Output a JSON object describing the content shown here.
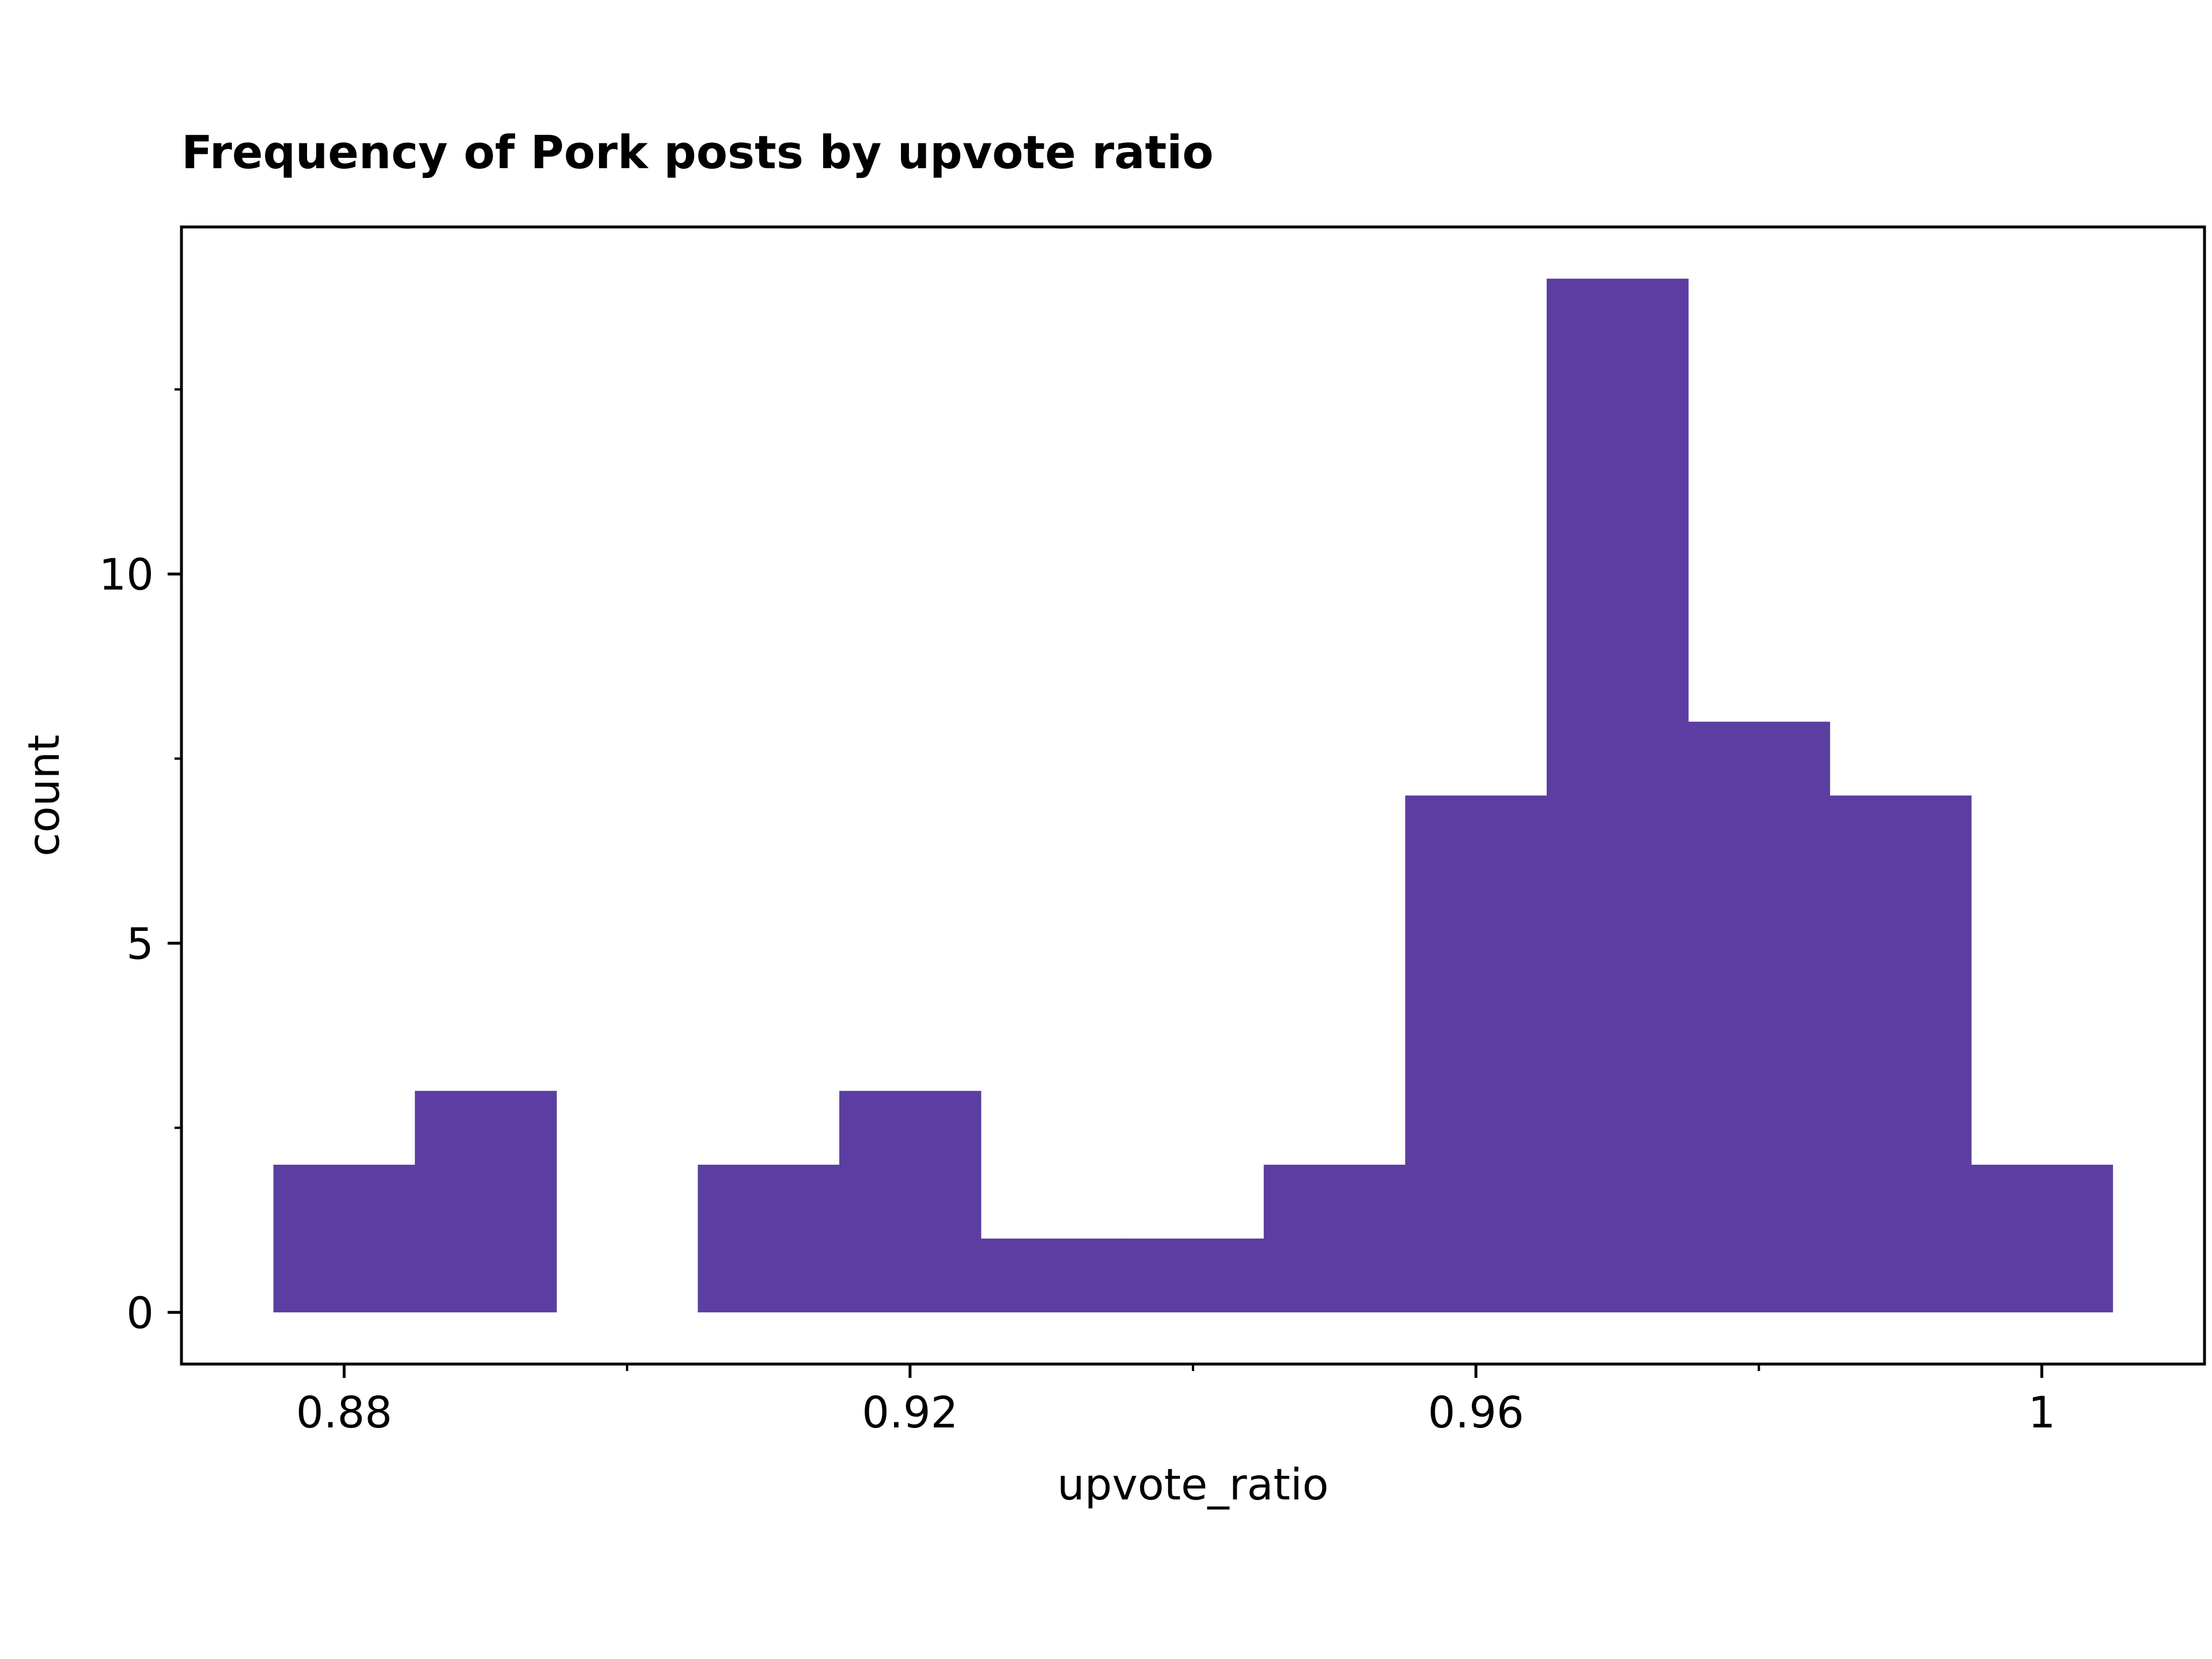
{
  "chart_data": {
    "type": "bar",
    "title": "Frequency of Pork posts by upvote ratio",
    "xlabel": "upvote_ratio",
    "ylabel": "count",
    "bin_width": 0.01,
    "bins": [
      {
        "start": 0.875,
        "end": 0.885,
        "count": 2
      },
      {
        "start": 0.885,
        "end": 0.895,
        "count": 3
      },
      {
        "start": 0.895,
        "end": 0.905,
        "count": 0
      },
      {
        "start": 0.905,
        "end": 0.915,
        "count": 2
      },
      {
        "start": 0.915,
        "end": 0.925,
        "count": 3
      },
      {
        "start": 0.925,
        "end": 0.935,
        "count": 1
      },
      {
        "start": 0.935,
        "end": 0.945,
        "count": 1
      },
      {
        "start": 0.945,
        "end": 0.955,
        "count": 2
      },
      {
        "start": 0.955,
        "end": 0.965,
        "count": 7
      },
      {
        "start": 0.965,
        "end": 0.975,
        "count": 14
      },
      {
        "start": 0.975,
        "end": 0.985,
        "count": 8
      },
      {
        "start": 0.985,
        "end": 0.995,
        "count": 7
      },
      {
        "start": 0.995,
        "end": 1.005,
        "count": 2
      }
    ],
    "xlim": [
      0.8685,
      1.0115
    ],
    "ylim": [
      -0.7,
      14.7
    ],
    "x_ticks": [
      {
        "value": 0.88,
        "label": "0.88"
      },
      {
        "value": 0.92,
        "label": "0.92"
      },
      {
        "value": 0.96,
        "label": "0.96"
      },
      {
        "value": 1.0,
        "label": "1"
      }
    ],
    "x_minor_ticks": [
      0.9,
      0.94,
      0.98
    ],
    "y_ticks": [
      {
        "value": 0,
        "label": "0"
      },
      {
        "value": 5,
        "label": "5"
      },
      {
        "value": 10,
        "label": "10"
      }
    ],
    "y_minor_ticks": [
      2.5,
      7.5,
      12.5
    ],
    "grid": false,
    "legend": "none",
    "bar_color": "#5c3ea2"
  }
}
